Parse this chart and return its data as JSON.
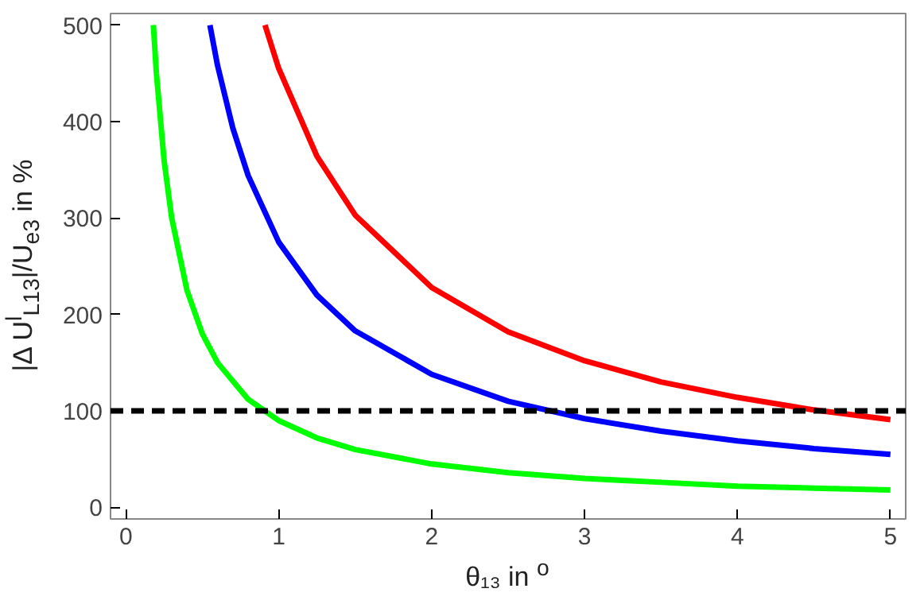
{
  "chart_data": {
    "type": "line",
    "xlabel": "θ₁₃ in $^{o}$",
    "ylabel": "|Δ U$^{l}$$_{L13}$|/U$_{e3}$ in %",
    "xlim": [
      -0.1,
      5.1
    ],
    "ylim": [
      -12,
      512
    ],
    "xticks": [
      0,
      1,
      2,
      3,
      4,
      5
    ],
    "yticks": [
      0,
      100,
      200,
      300,
      400,
      500
    ],
    "grid": false,
    "line_style": "solid",
    "series": [
      {
        "color": "#00ff00",
        "x": [
          0.18,
          0.2,
          0.25,
          0.3,
          0.4,
          0.5,
          0.6,
          0.8,
          1,
          1.25,
          1.5,
          2,
          2.5,
          3,
          3.5,
          4,
          4.5,
          5
        ],
        "values": [
          500,
          450,
          360,
          300,
          225,
          180,
          150,
          112,
          90,
          72,
          60,
          45,
          36,
          30,
          26,
          22,
          20,
          18
        ]
      },
      {
        "color": "#0000ff",
        "x": [
          0.55,
          0.6,
          0.7,
          0.8,
          1,
          1.25,
          1.5,
          2,
          2.5,
          3,
          3.5,
          4,
          4.5,
          5
        ],
        "values": [
          500,
          458,
          393,
          344,
          275,
          220,
          183,
          138,
          110,
          92,
          79,
          69,
          61,
          55
        ]
      },
      {
        "color": "#ff0000",
        "x": [
          0.91,
          1,
          1.25,
          1.5,
          2,
          2.5,
          3,
          3.5,
          4,
          4.5,
          5
        ],
        "values": [
          500,
          455,
          364,
          303,
          228,
          182,
          152,
          130,
          114,
          101,
          91
        ]
      }
    ],
    "ref_lines": [
      {
        "axis": "y",
        "value": 100,
        "color": "#000000",
        "line_style": "dashed"
      }
    ]
  }
}
